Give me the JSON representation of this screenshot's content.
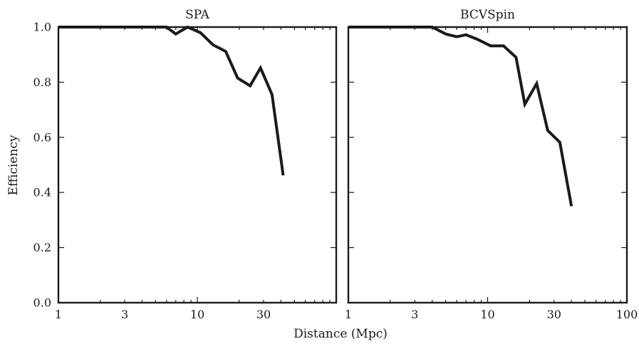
{
  "chart_data": [
    {
      "type": "line",
      "title": "SPA",
      "xscale": "log",
      "xlim": [
        1,
        100
      ],
      "ylim": [
        0,
        1
      ],
      "xticks": [
        1,
        3,
        10,
        30
      ],
      "xtick_labels": [
        "1",
        "3",
        "10",
        "30"
      ],
      "yticks": [
        0,
        0.2,
        0.4,
        0.6,
        0.8,
        1.0
      ],
      "ytick_labels": [
        "0.0",
        "0.2",
        "0.4",
        "0.6",
        "0.8",
        "1.0"
      ],
      "grid": false,
      "series": [
        {
          "x": [
            1,
            2,
            3,
            4,
            5,
            6,
            7,
            8.5,
            10.5,
            13,
            16,
            19.5,
            24,
            28.5,
            34.5,
            41.5
          ],
          "y": [
            1.0,
            1.0,
            1.0,
            1.0,
            1.0,
            1.0,
            0.975,
            1.0,
            0.98,
            0.935,
            0.912,
            0.815,
            0.787,
            0.852,
            0.755,
            0.462
          ]
        }
      ]
    },
    {
      "type": "line",
      "title": "BCVSpin",
      "xscale": "log",
      "xlim": [
        1,
        100
      ],
      "ylim": [
        0,
        1
      ],
      "xticks": [
        1,
        3,
        10,
        30,
        100
      ],
      "xtick_labels": [
        "1",
        "3",
        "10",
        "30",
        "100"
      ],
      "yticks": [
        0,
        0.2,
        0.4,
        0.6,
        0.8,
        1.0
      ],
      "grid": false,
      "series": [
        {
          "x": [
            1,
            2,
            3,
            4,
            5,
            6,
            7,
            8.5,
            10.5,
            13,
            16,
            18.5,
            22.5,
            27,
            33,
            40
          ],
          "y": [
            1.0,
            1.0,
            1.0,
            1.0,
            0.975,
            0.965,
            0.972,
            0.955,
            0.932,
            0.932,
            0.89,
            0.72,
            0.795,
            0.625,
            0.582,
            0.35
          ]
        }
      ]
    }
  ],
  "shared": {
    "ylabel": "Efficiency",
    "xlabel": "Distance (Mpc)"
  }
}
